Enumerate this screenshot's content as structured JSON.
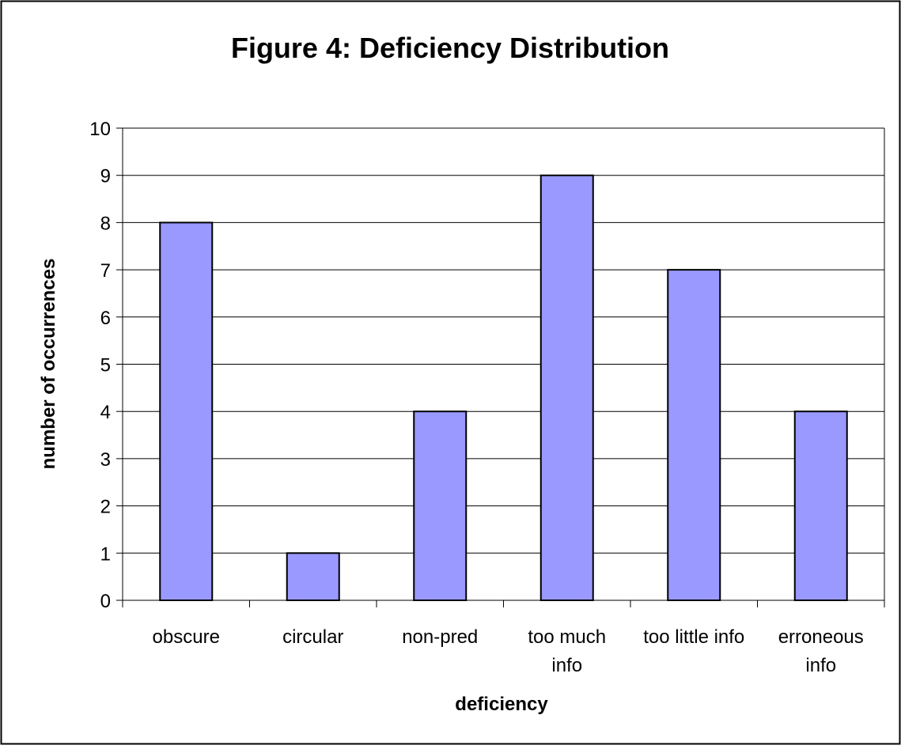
{
  "chart_data": {
    "type": "bar",
    "title": "Figure 4: Deficiency Distribution",
    "xlabel": "deficiency",
    "ylabel": "number of occurrences",
    "categories": [
      [
        "obscure"
      ],
      [
        "circular"
      ],
      [
        "non-pred"
      ],
      [
        "too much",
        "info"
      ],
      [
        "too little info"
      ],
      [
        "erroneous",
        "info"
      ]
    ],
    "values": [
      8,
      1,
      4,
      9,
      7,
      4
    ],
    "ylim": [
      0,
      10
    ],
    "yticks": [
      "0",
      "1",
      "2",
      "3",
      "4",
      "5",
      "6",
      "7",
      "8",
      "9",
      "10"
    ],
    "grid": true,
    "legend": "none",
    "colors": {
      "bar_fill": "#9999ff",
      "bar_stroke": "#000000",
      "grid": "#000000",
      "frame": "#000000"
    }
  }
}
